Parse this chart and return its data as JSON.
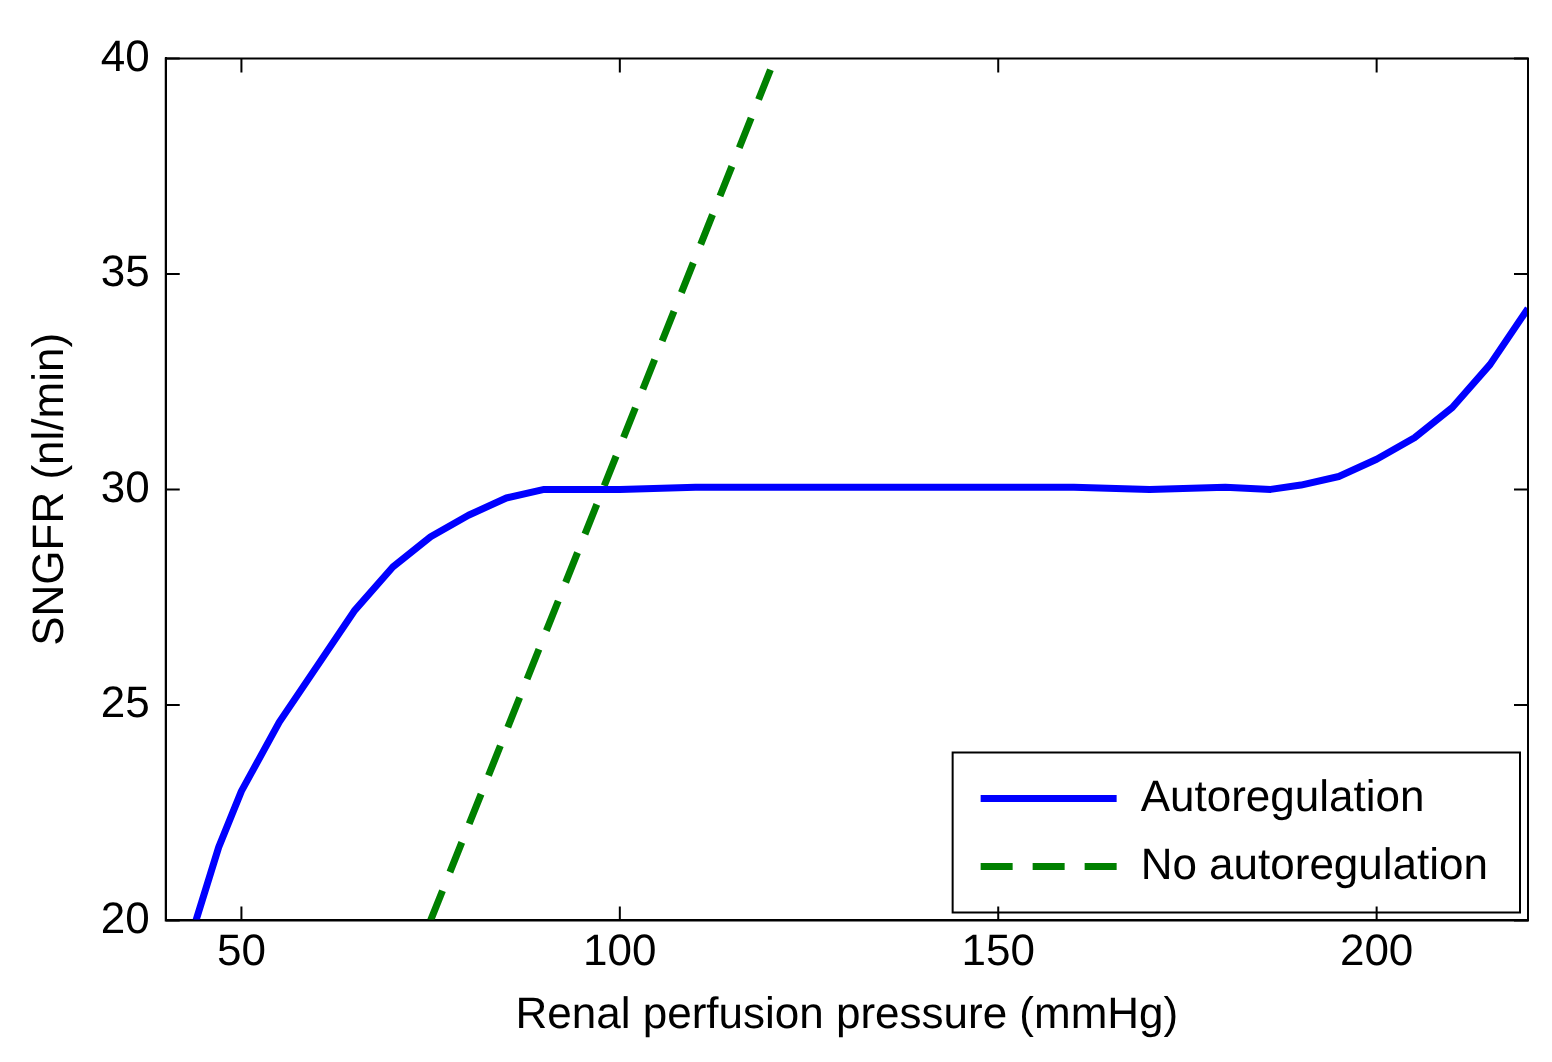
{
  "chart_data": {
    "type": "line",
    "xlabel": "Renal perfusion pressure (mmHg)",
    "ylabel": "SNGFR (nl/min)",
    "xlim": [
      40,
      220
    ],
    "xticks": [
      50,
      100,
      150,
      200
    ],
    "ylim": [
      20,
      40
    ],
    "yticks": [
      20,
      25,
      30,
      35,
      40
    ],
    "grid": false,
    "legend": "bottom right",
    "marker": "none",
    "series": [
      {
        "name": "Autoregulation",
        "color": "#0000ff",
        "line_style": "solid",
        "x": [
          44,
          47,
          50,
          55,
          60,
          65,
          70,
          75,
          80,
          85,
          90,
          95,
          100,
          110,
          120,
          140,
          160,
          170,
          180,
          186,
          190,
          195,
          200,
          205,
          210,
          215,
          220
        ],
        "values": [
          20,
          21.7,
          23,
          24.6,
          25.9,
          27.2,
          28.2,
          28.9,
          29.4,
          29.8,
          30,
          30,
          30,
          30.05,
          30.05,
          30.05,
          30.05,
          30,
          30.05,
          30,
          30.1,
          30.3,
          30.7,
          31.2,
          31.9,
          32.9,
          34.2
        ]
      },
      {
        "name": "No autoregulation",
        "color": "#008000",
        "line_style": "dashed",
        "x": [
          75,
          120.5
        ],
        "values": [
          20,
          40
        ]
      }
    ]
  }
}
